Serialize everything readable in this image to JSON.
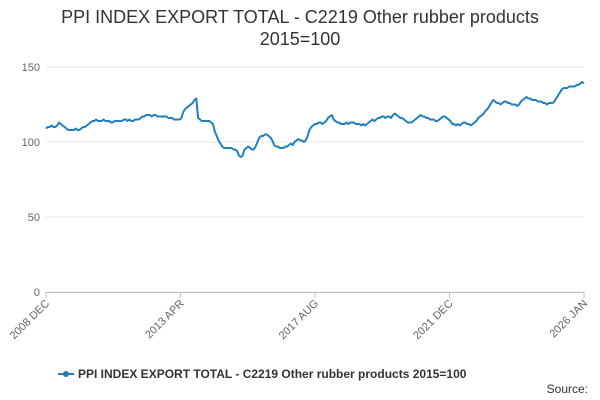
{
  "chart_data": {
    "type": "line",
    "title_lines": [
      "PPI INDEX EXPORT TOTAL - C2219 Other rubber products",
      "2015=100"
    ],
    "ylim": [
      0,
      150
    ],
    "y_ticks": [
      0,
      50,
      100,
      150
    ],
    "x_tick_labels": [
      "2008 DEC",
      "2013 APR",
      "2017 AUG",
      "2021 DEC",
      "2026 JAN"
    ],
    "grid": "horizontal",
    "legend_position": "bottom",
    "series_color": "#1f7fbf",
    "source_label": "Source:",
    "series": [
      {
        "name": "PPI INDEX EXPORT TOTAL - C2219 Other rubber products 2015=100",
        "values": [
          109,
          110,
          110,
          111,
          110,
          110,
          111,
          113,
          112,
          111,
          110,
          109,
          108,
          108,
          108,
          108,
          109,
          108,
          108,
          109,
          110,
          110,
          111,
          112,
          113,
          114,
          114,
          115,
          114,
          114,
          114,
          115,
          114,
          114,
          114,
          113,
          113,
          114,
          114,
          114,
          114,
          114,
          115,
          115,
          114,
          115,
          114,
          114,
          115,
          115,
          115,
          116,
          117,
          117,
          118,
          118,
          118,
          117,
          118,
          118,
          117,
          117,
          117,
          117,
          117,
          117,
          116,
          116,
          116,
          115,
          115,
          115,
          115,
          116,
          120,
          122,
          123,
          124,
          125,
          126,
          128,
          129,
          116,
          115,
          114,
          114,
          114,
          114,
          114,
          113,
          112,
          107,
          104,
          101,
          99,
          97,
          96,
          96,
          96,
          96,
          96,
          95,
          95,
          94,
          91,
          90,
          91,
          95,
          96,
          97,
          96,
          95,
          95,
          97,
          100,
          103,
          104,
          104,
          105,
          105,
          104,
          103,
          101,
          98,
          97,
          97,
          96,
          96,
          96,
          97,
          97,
          98,
          99,
          98,
          100,
          101,
          102,
          101,
          101,
          100,
          101,
          104,
          108,
          110,
          111,
          112,
          112,
          113,
          113,
          112,
          113,
          114,
          116,
          117,
          118,
          115,
          114,
          113,
          113,
          112,
          112,
          112,
          113,
          112,
          113,
          113,
          113,
          112,
          112,
          112,
          111,
          112,
          111,
          112,
          113,
          114,
          115,
          114,
          115,
          116,
          116,
          117,
          117,
          116,
          117,
          117,
          116,
          118,
          119,
          118,
          117,
          116,
          116,
          115,
          114,
          113,
          113,
          113,
          114,
          115,
          116,
          117,
          118,
          117,
          117,
          116,
          116,
          115,
          115,
          115,
          114,
          114,
          115,
          116,
          117,
          117,
          116,
          115,
          114,
          112,
          112,
          111,
          112,
          111,
          112,
          113,
          113,
          112,
          112,
          111,
          112,
          113,
          114,
          116,
          117,
          118,
          119,
          121,
          122,
          124,
          126,
          128,
          127,
          126,
          126,
          125,
          126,
          127,
          127,
          126,
          126,
          125,
          125,
          125,
          124,
          125,
          127,
          128,
          129,
          130,
          129,
          129,
          128,
          128,
          128,
          127,
          127,
          127,
          126,
          126,
          125,
          126,
          126,
          126,
          127,
          129,
          131,
          133,
          135,
          136,
          136,
          136,
          137,
          137,
          137,
          137,
          138,
          138,
          139,
          140,
          139
        ]
      }
    ]
  }
}
